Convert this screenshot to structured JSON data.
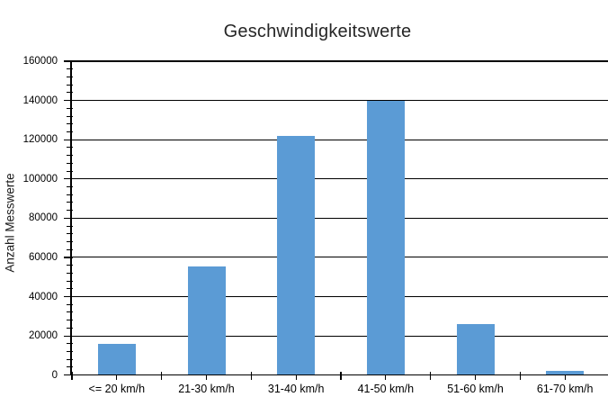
{
  "chart_data": {
    "type": "bar",
    "title": "Geschwindigkeitswerte",
    "xlabel": "",
    "ylabel": "Anzahl Messwerte",
    "categories": [
      "<= 20 km/h",
      "21-30 km/h",
      "31-40 km/h",
      "41-50 km/h",
      "51-60 km/h",
      "61-70 km/h"
    ],
    "values": [
      16000,
      55500,
      122000,
      140000,
      26000,
      2000
    ],
    "ylim": [
      0,
      160000
    ],
    "y_major_unit": 20000,
    "y_minor_unit": 4000,
    "y_tick_labels": [
      "0",
      "20000",
      "40000",
      "60000",
      "80000",
      "100000",
      "120000",
      "140000",
      "160000"
    ],
    "grid": true,
    "legend": "none",
    "bar_color": "#5b9bd5",
    "gridline_color": "#000000",
    "axis_color": "#000000",
    "text_color": "#262626",
    "background_color": "#ffffff"
  }
}
